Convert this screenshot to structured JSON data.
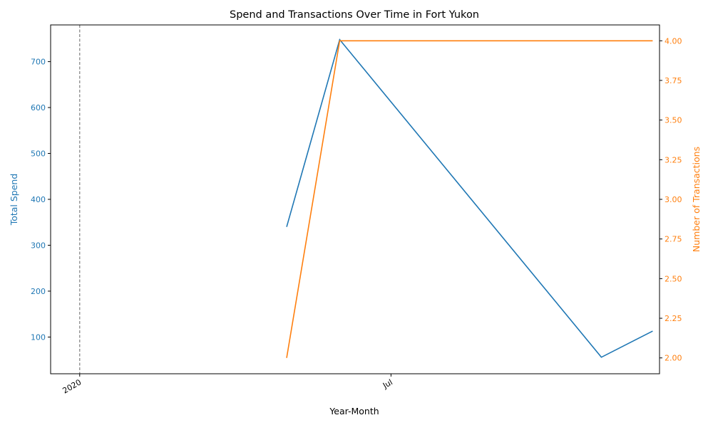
{
  "chart_data": {
    "type": "line",
    "title": "Spend and Transactions Over Time in Fort Yukon",
    "xlabel": "Year-Month",
    "x_ticks": [
      {
        "date": "2020-01-01",
        "label": "2020"
      },
      {
        "date": "2020-07-01",
        "label": "Jul"
      }
    ],
    "x_range": [
      "2019-12-15",
      "2020-12-05"
    ],
    "reference_line": {
      "date": "2020-01-01",
      "style": "dashed",
      "color": "#808080"
    },
    "axes": {
      "left": {
        "label": "Total Spend",
        "color": "#1f77b4",
        "ylim": [
          20,
          780
        ],
        "ticks": [
          100,
          200,
          300,
          400,
          500,
          600,
          700
        ],
        "tick_labels": [
          "100",
          "200",
          "300",
          "400",
          "500",
          "600",
          "700"
        ]
      },
      "right": {
        "label": "Number of Transactions",
        "color": "#ff7f0e",
        "ylim": [
          1.9,
          4.1
        ],
        "ticks": [
          2.0,
          2.25,
          2.5,
          2.75,
          3.0,
          3.25,
          3.5,
          3.75,
          4.0
        ],
        "tick_labels": [
          "2.00",
          "2.25",
          "2.50",
          "2.75",
          "3.00",
          "3.25",
          "3.50",
          "3.75",
          "4.00"
        ]
      }
    },
    "series": [
      {
        "axis": "left",
        "color": "#1f77b4",
        "points": [
          {
            "x": "2020-05-01",
            "y": 340
          },
          {
            "x": "2020-06-01",
            "y": 748
          },
          {
            "x": "2020-11-01",
            "y": 56
          },
          {
            "x": "2020-12-01",
            "y": 113
          }
        ]
      },
      {
        "axis": "right",
        "color": "#ff7f0e",
        "points": [
          {
            "x": "2020-05-01",
            "y": 2.0
          },
          {
            "x": "2020-06-01",
            "y": 4.0
          },
          {
            "x": "2020-11-01",
            "y": 4.0
          },
          {
            "x": "2020-12-01",
            "y": 4.0
          }
        ]
      }
    ],
    "grid": false
  }
}
